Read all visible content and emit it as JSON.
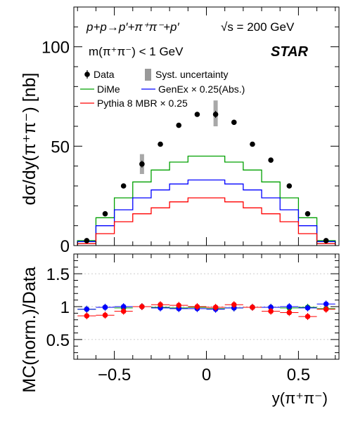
{
  "figure": {
    "process_text": "p+p→p′+π⁺π⁻+p′",
    "energy_text": "√s = 200 GeV",
    "mass_cut_text": "m(π⁺π⁻) < 1 GeV",
    "experiment_text": "STAR",
    "top_ylabel": "dσ/dy(π⁺π⁻) [nb]",
    "bottom_ylabel": "MC(norm.)/Data",
    "xlabel": "y(π⁺π⁻)",
    "legend": {
      "data": "Data",
      "syst": "Syst. uncertainty",
      "dime": "DiMe",
      "genex": "GenEx × 0.25(Abs.)",
      "pythia": "Pythia 8 MBR × 0.25"
    }
  },
  "colors": {
    "dime": "#00a000",
    "genex": "#0000ff",
    "pythia": "#ff0000",
    "data": "#000000",
    "syst": "#999999"
  },
  "chart_data": [
    {
      "type": "line",
      "xlim": [
        -0.72,
        0.72
      ],
      "ylim": [
        0,
        120
      ],
      "yticks": [
        0,
        50,
        100
      ],
      "xticks": [
        -0.5,
        0,
        0.5
      ],
      "bin_edges": [
        -0.7,
        -0.6,
        -0.5,
        -0.4,
        -0.3,
        -0.2,
        -0.1,
        0.0,
        0.1,
        0.2,
        0.3,
        0.4,
        0.5,
        0.6,
        0.7
      ],
      "data_points": {
        "x": [
          -0.65,
          -0.55,
          -0.45,
          -0.35,
          -0.25,
          -0.15,
          -0.05,
          0.05,
          0.15,
          0.25,
          0.35,
          0.45,
          0.55,
          0.65
        ],
        "y": [
          2.5,
          16,
          30,
          41,
          51,
          60.5,
          66,
          66,
          62,
          51,
          43,
          30,
          16,
          2.5
        ],
        "yerr": [
          0.6,
          1.2,
          1.2,
          1.8,
          1.2,
          1.2,
          1.2,
          1.8,
          1.2,
          1.2,
          1.2,
          1.2,
          1.2,
          0.6
        ]
      },
      "syst_boxes": [
        {
          "x": -0.35,
          "ylo": 36,
          "yhi": 46
        },
        {
          "x": 0.05,
          "ylo": 60,
          "yhi": 73
        }
      ],
      "series": [
        {
          "name": "DiMe",
          "color_key": "dime",
          "values": [
            2.5,
            14,
            24,
            32,
            38,
            42,
            45,
            45,
            42,
            38,
            32,
            24,
            14,
            2.5
          ]
        },
        {
          "name": "GenEx × 0.25(Abs.)",
          "color_key": "genex",
          "values": [
            2,
            10,
            18,
            24,
            28,
            31,
            33,
            33,
            31,
            28,
            24,
            18,
            10,
            2
          ]
        },
        {
          "name": "Pythia 8 MBR × 0.25",
          "color_key": "pythia",
          "values": [
            1,
            6,
            12,
            16,
            19,
            22,
            24,
            24,
            22,
            19,
            16,
            12,
            6,
            1
          ]
        }
      ]
    },
    {
      "type": "scatter",
      "xlim": [
        -0.72,
        0.72
      ],
      "ylim": [
        0.2,
        1.8
      ],
      "yticks": [
        0.5,
        1,
        1.5
      ],
      "xticks": [
        -0.5,
        0,
        0.5
      ],
      "reference_lines": [
        0.5,
        1.0,
        1.5
      ],
      "series": [
        {
          "name": "DiMe",
          "color_key": "dime",
          "x": [
            -0.65,
            -0.55,
            -0.45,
            -0.35,
            -0.25,
            -0.15,
            -0.05,
            0.05,
            0.15,
            0.25,
            0.35,
            0.45,
            0.55,
            0.65
          ],
          "values": [
            0.96,
            0.99,
            0.98,
            1.0,
            0.99,
            0.98,
            0.99,
            0.97,
            0.98,
            0.99,
            0.99,
            0.98,
            0.99,
            0.97
          ]
        },
        {
          "name": "GenEx × 0.25(Abs.)",
          "color_key": "genex",
          "x": [
            -0.65,
            -0.55,
            -0.45,
            -0.35,
            -0.25,
            -0.15,
            -0.05,
            0.05,
            0.15,
            0.25,
            0.35,
            0.45,
            0.55,
            0.65
          ],
          "values": [
            0.96,
            0.99,
            1.0,
            1.0,
            0.98,
            0.97,
            0.97,
            0.96,
            0.98,
            0.99,
            0.99,
            1.0,
            0.98,
            1.04
          ]
        },
        {
          "name": "Pythia 8 MBR × 0.25",
          "color_key": "pythia",
          "x": [
            -0.65,
            -0.55,
            -0.45,
            -0.35,
            -0.25,
            -0.15,
            -0.05,
            0.05,
            0.15,
            0.25,
            0.35,
            0.45,
            0.55,
            0.65
          ],
          "values": [
            0.86,
            0.87,
            0.93,
            1.0,
            1.03,
            1.02,
            1.0,
            0.99,
            1.03,
            0.99,
            0.93,
            0.91,
            0.85,
            0.96
          ]
        }
      ]
    }
  ]
}
